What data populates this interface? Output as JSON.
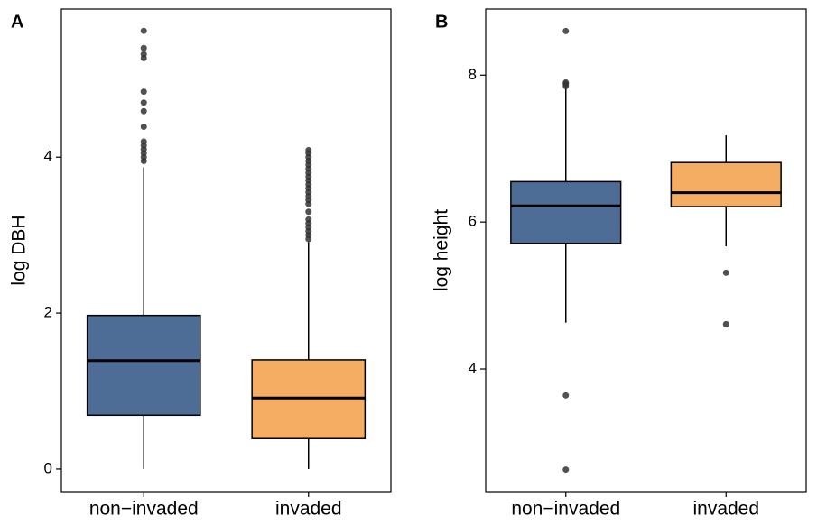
{
  "chart_data": [
    {
      "type": "boxplot",
      "tag": "A",
      "ylabel": "log DBH",
      "categories": [
        "non−invaded",
        "invaded"
      ],
      "ylim": [
        -0.29,
        5.9
      ],
      "yticks": [
        0,
        2,
        4
      ],
      "boxes": [
        {
          "color": "#4e6d96",
          "whisker_low": 0,
          "q1": 0.69,
          "median": 1.39,
          "q3": 1.97,
          "whisker_high": 3.87,
          "outliers": [
            3.95,
            4.0,
            4.05,
            4.1,
            4.15,
            4.2,
            4.39,
            4.59,
            4.7,
            4.84,
            5.27,
            5.32,
            5.4,
            5.62
          ]
        },
        {
          "color": "#f5ad63",
          "whisker_low": 0,
          "q1": 0.39,
          "median": 0.91,
          "q3": 1.4,
          "whisker_high": 2.91,
          "outliers": [
            2.95,
            3.0,
            3.05,
            3.1,
            3.15,
            3.2,
            3.3,
            3.4,
            3.45,
            3.5,
            3.55,
            3.6,
            3.65,
            3.7,
            3.75,
            3.8,
            3.85,
            3.9,
            3.95,
            4.0,
            4.05,
            4.09
          ]
        }
      ]
    },
    {
      "type": "boxplot",
      "tag": "B",
      "ylabel": "log height",
      "categories": [
        "non−invaded",
        "invaded"
      ],
      "ylim": [
        2.33,
        8.9
      ],
      "yticks": [
        4,
        6,
        8
      ],
      "boxes": [
        {
          "color": "#4e6d96",
          "whisker_low": 4.63,
          "q1": 5.71,
          "median": 6.22,
          "q3": 6.55,
          "whisker_high": 7.84,
          "outliers": [
            2.63,
            3.64,
            7.85,
            7.88,
            7.9,
            8.6
          ]
        },
        {
          "color": "#f5ad63",
          "whisker_low": 5.67,
          "q1": 6.21,
          "median": 6.4,
          "q3": 6.81,
          "whisker_high": 7.18,
          "outliers": [
            4.61,
            5.31
          ]
        }
      ]
    }
  ]
}
